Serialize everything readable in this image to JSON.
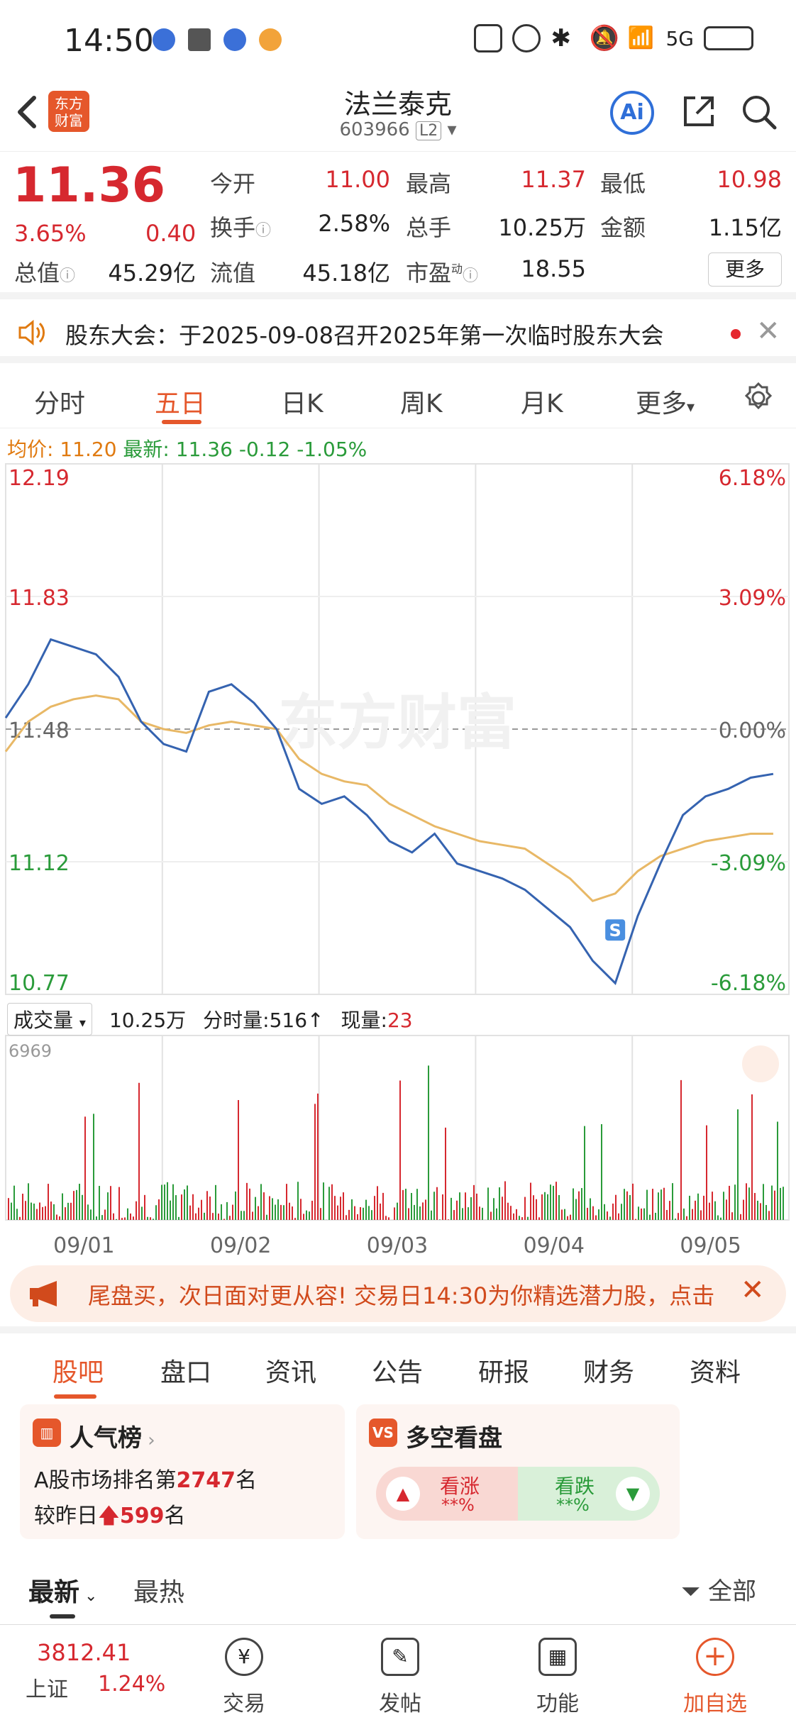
{
  "status_bar": {
    "time": "14:50",
    "network": "5G"
  },
  "header": {
    "logo_text": "东方财富",
    "title": "法兰泰克",
    "code": "603966",
    "level": "L2"
  },
  "quote": {
    "price": "11.36",
    "change_pct": "3.65%",
    "change": "0.40",
    "fields": [
      {
        "label": "今开",
        "value": "11.00",
        "color": "red"
      },
      {
        "label": "最高",
        "value": "11.37",
        "color": "red"
      },
      {
        "label": "最低",
        "value": "10.98",
        "color": "red"
      },
      {
        "label": "换手",
        "value": "2.58%",
        "color": "black"
      },
      {
        "label": "总手",
        "value": "10.25万",
        "color": "black"
      },
      {
        "label": "金额",
        "value": "1.15亿",
        "color": "black"
      },
      {
        "label": "总值",
        "value": "45.29亿",
        "color": "black"
      },
      {
        "label": "流值",
        "value": "45.18亿",
        "color": "black"
      },
      {
        "label": "市盈",
        "value": "18.55",
        "color": "black"
      }
    ],
    "pe_sup": "动",
    "more_label": "更多"
  },
  "notice": {
    "text": "股东大会：于2025-09-08召开2025年第一次临时股东大会"
  },
  "chart_tabs": [
    "分时",
    "五日",
    "日K",
    "周K",
    "月K",
    "更多"
  ],
  "chart_tab_active": 1,
  "info": {
    "avg_label": "均价:",
    "avg_value": "11.20",
    "latest_label": "最新:",
    "latest_value": "11.36",
    "diff": "-0.12",
    "diff_pct": "-1.05%"
  },
  "watermark": "东方财富",
  "chart_data": {
    "type": "line",
    "title": "",
    "ylim": [
      10.77,
      12.19
    ],
    "y_ticks_left": [
      "12.19",
      "11.83",
      "11.48",
      "11.12",
      "10.77"
    ],
    "y_ticks_right": [
      "6.18%",
      "3.09%",
      "0.00%",
      "-3.09%",
      "-6.18%"
    ],
    "x_labels": [
      "09/01",
      "09/02",
      "09/03",
      "09/04",
      "09/05"
    ],
    "series": [
      {
        "values": [
          11.51,
          11.6,
          11.72,
          11.7,
          11.68,
          11.62,
          11.5,
          11.44,
          11.42,
          11.58,
          11.6,
          11.55,
          11.48,
          11.32,
          11.28,
          11.3,
          11.25,
          11.18,
          11.15,
          11.2,
          11.12,
          11.1,
          11.08,
          11.05,
          11.0,
          10.95,
          10.86,
          10.8,
          10.98,
          11.12,
          11.25,
          11.3,
          11.32,
          11.35,
          11.36
        ]
      },
      {
        "values": [
          11.42,
          11.5,
          11.54,
          11.56,
          11.57,
          11.56,
          11.5,
          11.48,
          11.47,
          11.49,
          11.5,
          11.49,
          11.48,
          11.4,
          11.36,
          11.34,
          11.33,
          11.28,
          11.25,
          11.22,
          11.2,
          11.18,
          11.17,
          11.16,
          11.12,
          11.08,
          11.02,
          11.04,
          11.1,
          11.14,
          11.16,
          11.18,
          11.19,
          11.2,
          11.2
        ]
      }
    ],
    "volume": {
      "label": "成交量",
      "total": "10.25万",
      "minute_label": "分时量:",
      "minute_value": "516",
      "arrow": "↑",
      "now_label": "现量:",
      "now_value": "23",
      "max_tick": "6969"
    },
    "signal_badge": "S"
  },
  "banner": {
    "text": "尾盘买，次日面对更从容! 交易日14:30为你精选潜力股，点击"
  },
  "section_tabs": [
    "股吧",
    "盘口",
    "资讯",
    "公告",
    "研报",
    "财务",
    "资料"
  ],
  "section_tab_active": 0,
  "popularity": {
    "title": "人气榜",
    "line1_prefix": "A股市场排名第",
    "rank": "2747",
    "line1_suffix": "名",
    "line2_prefix": "较昨日",
    "change": "599",
    "line2_suffix": "名"
  },
  "sentiment": {
    "title": "多空看盘",
    "bull_label": "看涨",
    "bull_value": "**%",
    "bear_label": "看跌",
    "bear_value": "**%"
  },
  "feed_tabs": {
    "latest": "最新",
    "hot": "最热",
    "filter": "全部"
  },
  "bottom_nav": {
    "index_value": "3812.41",
    "index_name": "上证",
    "index_pct": "1.24%",
    "items": [
      "交易",
      "发帖",
      "功能",
      "加自选"
    ]
  }
}
